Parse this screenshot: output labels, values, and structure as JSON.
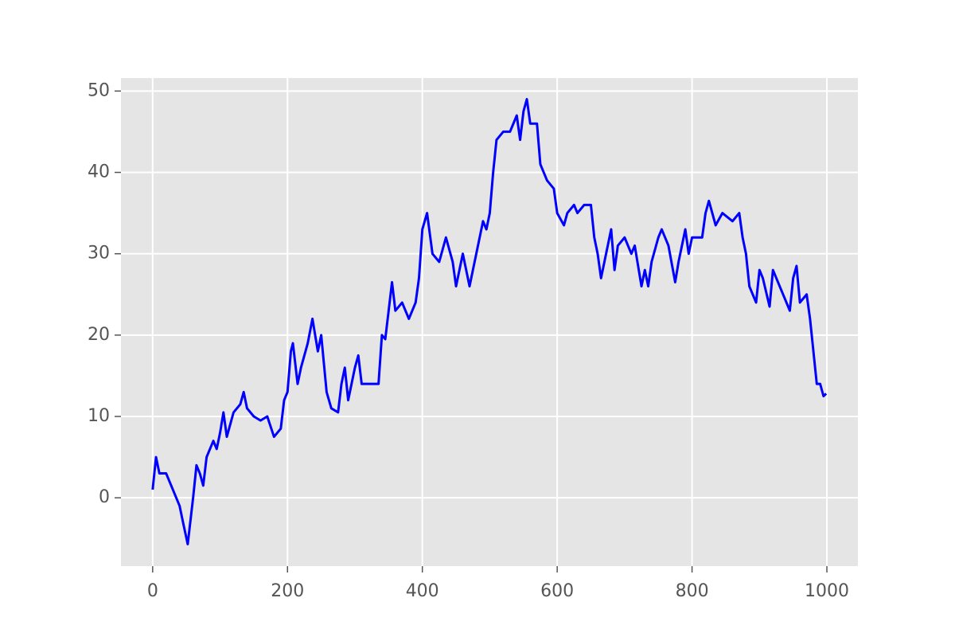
{
  "chart_data": {
    "type": "line",
    "color": "#0000ff",
    "background": "#e5e5e5",
    "grid": true,
    "x": [
      0,
      5,
      10,
      20,
      30,
      40,
      45,
      52,
      60,
      65,
      70,
      75,
      80,
      90,
      95,
      100,
      105,
      110,
      120,
      130,
      135,
      140,
      150,
      160,
      170,
      180,
      190,
      195,
      200,
      205,
      208,
      215,
      220,
      230,
      237,
      245,
      250,
      258,
      265,
      275,
      280,
      285,
      290,
      300,
      305,
      310,
      320,
      335,
      340,
      345,
      355,
      360,
      370,
      380,
      390,
      395,
      400,
      407,
      415,
      425,
      435,
      445,
      450,
      455,
      460,
      470,
      475,
      480,
      490,
      495,
      500,
      505,
      510,
      520,
      530,
      540,
      545,
      550,
      555,
      560,
      570,
      575,
      585,
      595,
      600,
      610,
      615,
      625,
      630,
      640,
      650,
      655,
      660,
      665,
      670,
      680,
      685,
      690,
      700,
      710,
      715,
      725,
      730,
      735,
      740,
      750,
      755,
      765,
      775,
      780,
      790,
      795,
      800,
      815,
      820,
      825,
      835,
      845,
      860,
      870,
      875,
      880,
      885,
      890,
      895,
      900,
      905,
      915,
      920,
      930,
      940,
      945,
      950,
      955,
      960,
      970,
      975,
      980,
      985,
      990,
      995,
      999
    ],
    "values": [
      1,
      5,
      3,
      3,
      1,
      -1,
      -3,
      -5.7,
      0,
      4,
      3,
      1.5,
      5,
      7,
      6,
      8,
      10.5,
      7.5,
      10.5,
      11.5,
      13,
      11,
      10,
      9.5,
      10,
      7.5,
      8.5,
      12,
      13,
      18,
      19,
      14,
      16,
      19,
      22,
      18,
      20,
      13,
      11,
      10.5,
      14,
      16,
      12,
      16,
      17.5,
      14,
      14,
      14,
      20,
      19.5,
      26.5,
      23,
      24,
      22,
      24,
      27,
      33,
      35,
      30,
      29,
      32,
      29,
      26,
      28,
      30,
      26,
      28,
      30,
      34,
      33,
      35,
      40,
      44,
      45,
      45,
      47,
      44,
      47.5,
      49,
      46,
      46,
      41,
      39,
      38,
      35,
      33.5,
      35,
      36,
      35,
      36,
      36,
      32,
      30,
      27,
      29,
      33,
      28,
      31,
      32,
      30,
      31,
      26,
      28,
      26,
      29,
      32,
      33,
      31,
      26.5,
      29,
      33,
      30,
      32,
      32,
      35,
      36.5,
      33.5,
      35,
      34,
      35,
      32,
      30,
      26,
      25,
      24,
      28,
      27,
      23.5,
      28,
      26,
      24,
      23,
      27,
      28.5,
      24,
      25,
      22,
      18,
      14,
      14,
      12.5,
      12.8
    ],
    "xlim": [
      -47,
      1046
    ],
    "ylim": [
      -8.4,
      51.6
    ],
    "xticks": [
      0,
      200,
      400,
      600,
      800,
      1000
    ],
    "yticks": [
      0,
      10,
      20,
      30,
      40,
      50
    ]
  }
}
